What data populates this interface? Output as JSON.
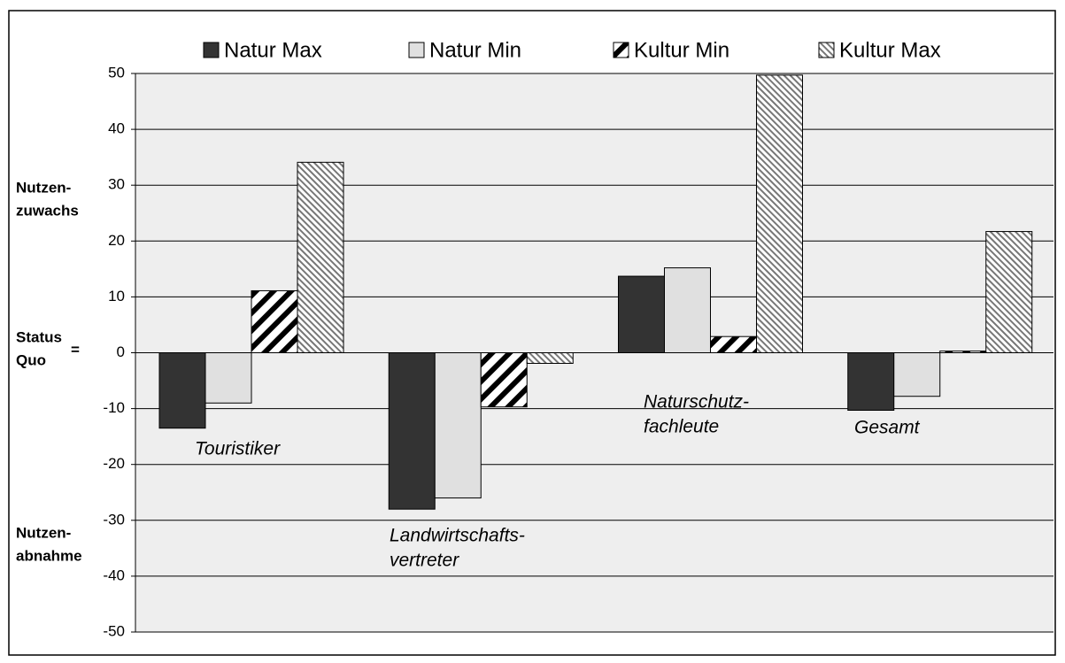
{
  "chart_data": {
    "type": "bar",
    "categories": [
      [
        "Touristiker"
      ],
      [
        "Landwirtschafts-",
        "vertreter"
      ],
      [
        "Naturschutz-",
        "fachleute"
      ],
      [
        "Gesamt"
      ]
    ],
    "series": [
      {
        "name": "Natur Max",
        "color": "#333333",
        "values": [
          -13.5,
          -28,
          13.7,
          -10.3
        ]
      },
      {
        "name": "Natur Min",
        "color": "#e0e0e0",
        "values": [
          -9,
          -26,
          15.2,
          -7.8
        ]
      },
      {
        "name": "Kultur Min",
        "color": "#000000",
        "values": [
          11.1,
          -9.7,
          2.9,
          0.3
        ]
      },
      {
        "name": "Kultur Max",
        "color": "#777777",
        "values": [
          34.1,
          -1.9,
          49.7,
          21.7
        ]
      }
    ],
    "ylim": [
      -50,
      50
    ],
    "yticks": [
      -50,
      -40,
      -30,
      -20,
      -10,
      0,
      10,
      20,
      30,
      40,
      50
    ],
    "grid": true,
    "annotations": [
      {
        "lines": [
          "Nutzen-",
          "zuwachs"
        ]
      },
      {
        "lines": [
          "Status",
          "Quo"
        ],
        "mark": "="
      },
      {
        "lines": [
          "Nutzen-",
          "abnahme"
        ]
      }
    ]
  }
}
